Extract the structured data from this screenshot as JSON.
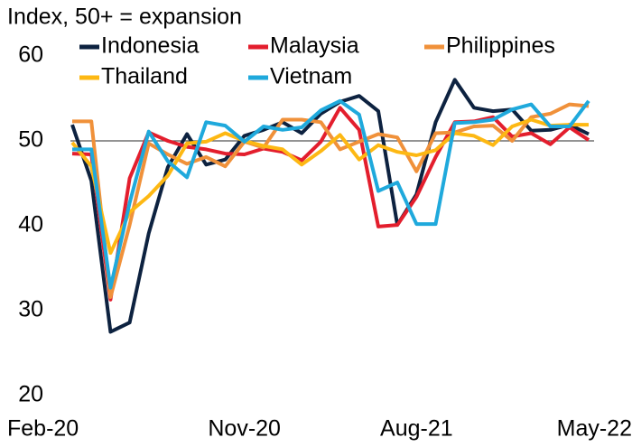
{
  "chart_data": {
    "type": "line",
    "title": "Index, 50+ = expansion",
    "categories": [
      "Feb-20",
      null,
      null,
      null,
      null,
      null,
      null,
      null,
      null,
      "Nov-20",
      null,
      null,
      null,
      null,
      null,
      null,
      null,
      null,
      "Aug-21",
      null,
      null,
      null,
      null,
      null,
      null,
      null,
      null,
      "May-22"
    ],
    "series": [
      {
        "name": "Indonesia",
        "color": "#0d2240",
        "values": [
          51.9,
          45.3,
          27.5,
          28.6,
          39.1,
          46.9,
          50.8,
          47.2,
          47.8,
          50.6,
          51.3,
          52.2,
          50.9,
          53.2,
          54.6,
          55.3,
          53.5,
          40.1,
          43.7,
          52.2,
          57.2,
          53.9,
          53.5,
          53.7,
          51.2,
          51.3,
          51.9,
          50.8
        ]
      },
      {
        "name": "Malaysia",
        "color": "#e31e2d",
        "values": [
          48.5,
          48.4,
          31.3,
          45.6,
          51.0,
          50.0,
          49.3,
          49.0,
          48.5,
          48.4,
          49.1,
          48.7,
          47.7,
          49.9,
          53.9,
          51.3,
          39.9,
          40.1,
          43.4,
          48.1,
          52.2,
          52.3,
          52.8,
          50.5,
          50.9,
          49.6,
          51.6,
          50.1
        ]
      },
      {
        "name": "Philippines",
        "color": "#f0913a",
        "values": [
          52.3,
          52.3,
          31.6,
          40.1,
          49.7,
          48.4,
          47.3,
          48.1,
          47.0,
          49.9,
          49.2,
          52.5,
          52.5,
          52.2,
          49.0,
          49.9,
          50.8,
          50.4,
          46.4,
          50.9,
          51.0,
          51.7,
          51.8,
          50.0,
          52.8,
          53.2,
          54.3,
          54.1
        ]
      },
      {
        "name": "Thailand",
        "color": "#fdb813",
        "values": [
          49.8,
          47.0,
          36.8,
          41.6,
          43.5,
          45.9,
          49.7,
          49.9,
          50.9,
          50.0,
          49.4,
          49.0,
          47.2,
          48.8,
          50.7,
          47.8,
          49.5,
          48.7,
          48.3,
          48.9,
          50.9,
          50.6,
          49.5,
          51.7,
          52.5,
          51.8,
          51.9,
          51.9
        ]
      },
      {
        "name": "Vietnam",
        "color": "#1fa9dc",
        "values": [
          49.0,
          49.0,
          32.7,
          42.7,
          51.1,
          47.6,
          45.7,
          52.2,
          51.8,
          49.9,
          51.7,
          51.3,
          51.6,
          53.6,
          54.7,
          53.1,
          44.1,
          45.1,
          40.2,
          40.2,
          52.1,
          52.2,
          52.5,
          53.7,
          54.3,
          51.7,
          51.7,
          54.7
        ]
      }
    ],
    "ylim": [
      20,
      60
    ],
    "yticks": [
      20,
      30,
      40,
      50,
      60
    ],
    "reference_line": 50
  }
}
